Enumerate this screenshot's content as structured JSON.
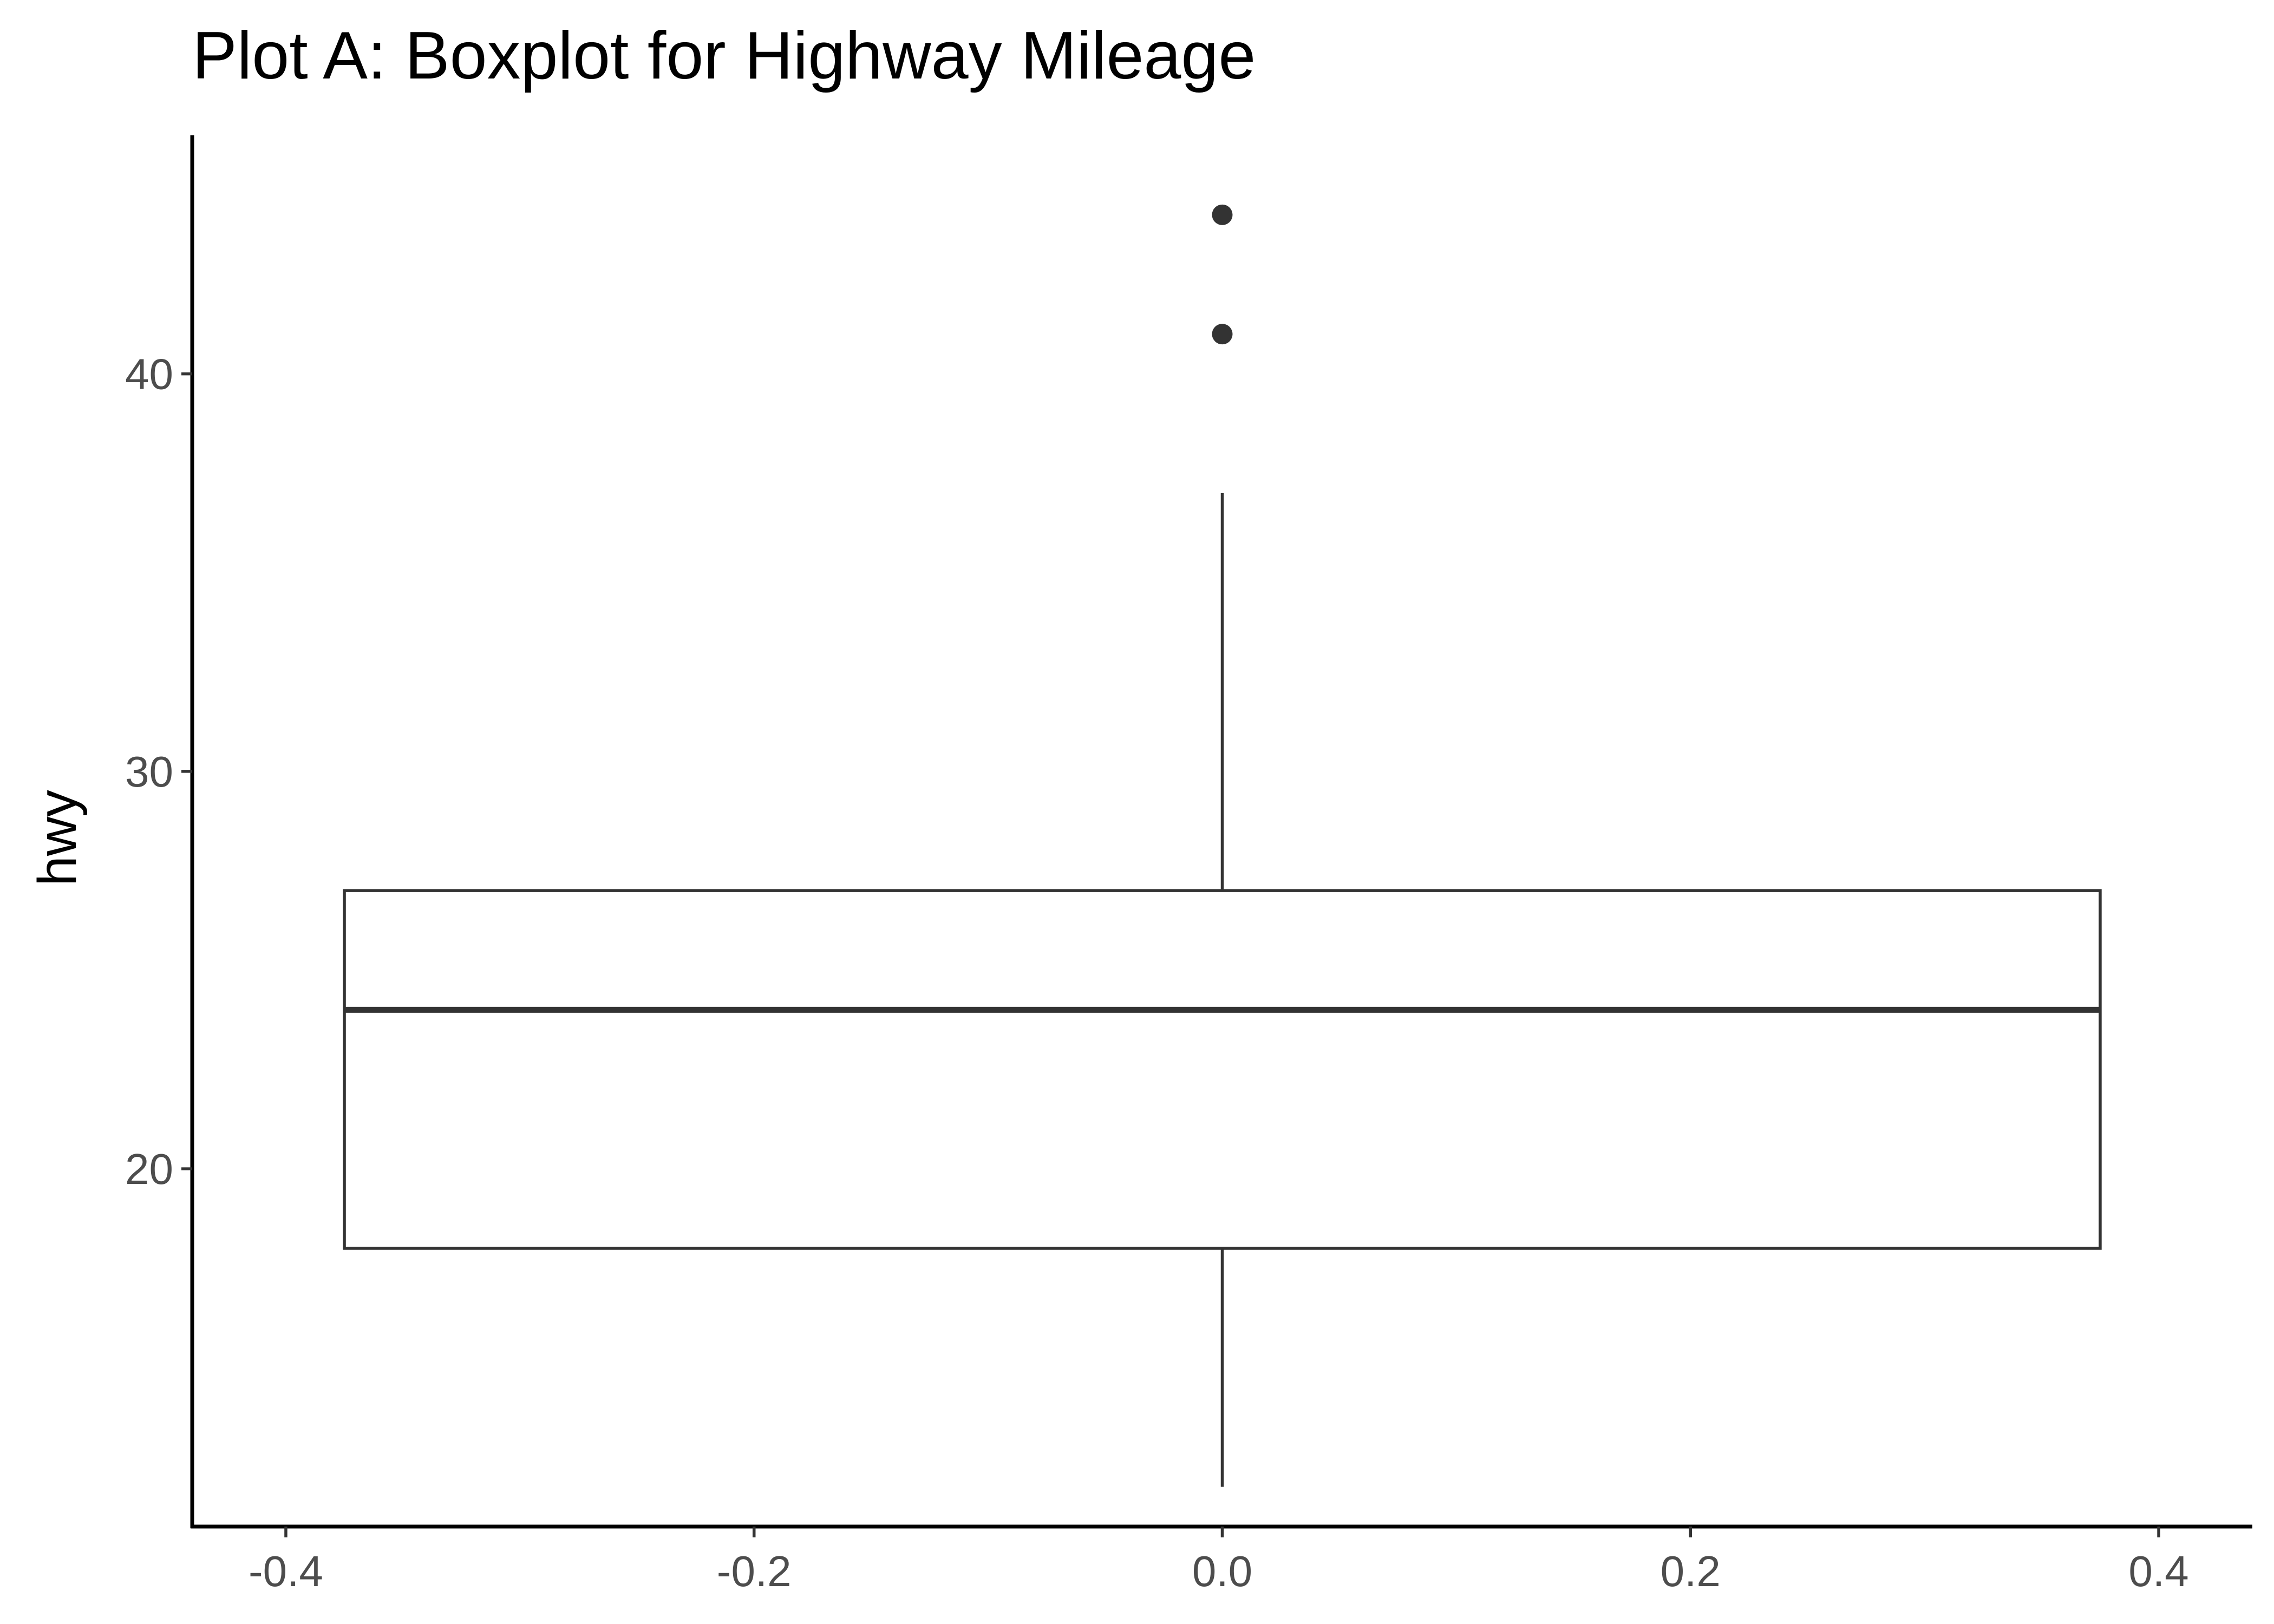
{
  "chart_data": {
    "type": "boxplot",
    "title": "Plot A: Boxplot for Highway Mileage",
    "xlabel": "",
    "ylabel": "hwy",
    "xlim": [
      -0.4,
      0.4
    ],
    "ylim": [
      11,
      46
    ],
    "x_ticks": [
      -0.4,
      -0.2,
      0.0,
      0.2,
      0.4
    ],
    "x_tick_labels": [
      "-0.4",
      "-0.2",
      "0.0",
      "0.2",
      "0.4"
    ],
    "y_ticks": [
      20,
      30,
      40
    ],
    "y_tick_labels": [
      "20",
      "30",
      "40"
    ],
    "grid": false,
    "box": {
      "x": 0.0,
      "x_min": -0.375,
      "x_max": 0.375,
      "whisker_low": 12,
      "q1": 18,
      "median": 24,
      "q3": 27,
      "whisker_high": 37,
      "outliers": [
        41,
        44
      ]
    },
    "colors": {
      "box_line": "#333333",
      "box_fill": "#ffffff",
      "axis": "#000000",
      "tick_label": "#4d4d4d",
      "title": "#000000"
    }
  }
}
